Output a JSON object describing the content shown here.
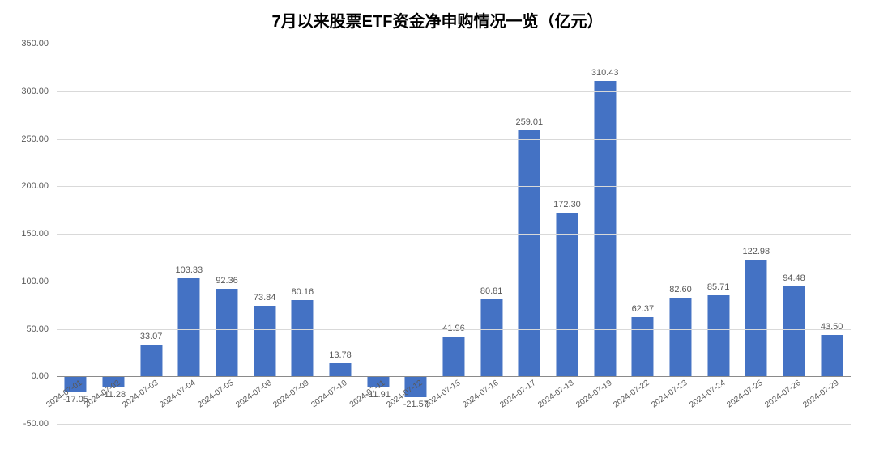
{
  "chart": {
    "type": "bar",
    "title": "7月以来股票ETF资金净申购情况一览（亿元）",
    "title_fontsize": 20,
    "title_color": "#000000",
    "background_color": "#ffffff",
    "grid_color": "#d9d9d9",
    "axis_color": "#8a8a8a",
    "text_color": "#595959",
    "bar_color": "#4472c4",
    "bar_width_ratio": 0.58,
    "ylim": [
      -50,
      350
    ],
    "ytick_step": 50,
    "yticks": [
      "-50.00",
      "0.00",
      "50.00",
      "100.00",
      "150.00",
      "200.00",
      "250.00",
      "300.00",
      "350.00"
    ],
    "label_fontsize": 11,
    "xlabel_fontsize": 10,
    "xlabel_rotation": -35,
    "categories": [
      "2024-07-01",
      "2024-07-02",
      "2024-07-03",
      "2024-07-04",
      "2024-07-05",
      "2024-07-08",
      "2024-07-09",
      "2024-07-10",
      "2024-07-11",
      "2024-07-12",
      "2024-07-15",
      "2024-07-16",
      "2024-07-17",
      "2024-07-18",
      "2024-07-19",
      "2024-07-22",
      "2024-07-23",
      "2024-07-24",
      "2024-07-25",
      "2024-07-26",
      "2024-07-29"
    ],
    "values": [
      -17.05,
      -11.28,
      33.07,
      103.33,
      92.36,
      73.84,
      80.16,
      13.78,
      -11.91,
      -21.57,
      41.96,
      80.81,
      259.01,
      172.3,
      310.43,
      62.37,
      82.6,
      85.71,
      122.98,
      94.48,
      43.5
    ]
  }
}
